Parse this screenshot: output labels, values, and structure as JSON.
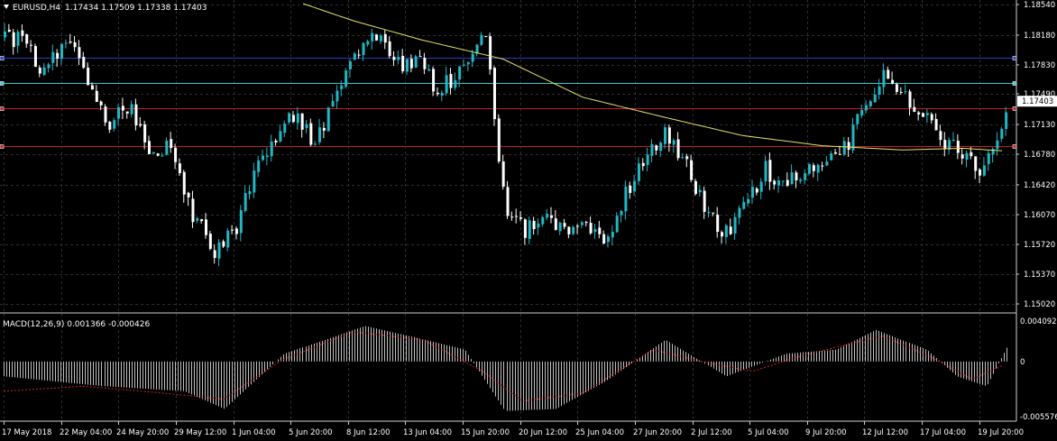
{
  "header": {
    "symbol": "EURUSD,H4",
    "ohlc": "1.17434 1.17509 1.17338 1.17403",
    "macd_label": "MACD(12,26,9) 0.001366 -0.000426"
  },
  "colors": {
    "background": "#000000",
    "grid": "#2e2e2e",
    "bull": "#21b8c4",
    "bear": "#ffffff",
    "ma": "#e6e36a",
    "hline_blue": "#2b3bbf",
    "hline_cyan": "#37c7d2",
    "hline_red": "#c02020",
    "macd_signal": "#d22020",
    "macd_hist": "#bfbfbf"
  },
  "chart_data": [
    {
      "type": "candlestick",
      "series": "EURUSD,H4",
      "y_ticks": [
        "1.18540",
        "1.18180",
        "1.17830",
        "1.17490",
        "1.17130",
        "1.16780",
        "1.16420",
        "1.16070",
        "1.15720",
        "1.15370",
        "1.15020"
      ],
      "ylim": [
        1.1502,
        1.1854
      ],
      "current_price": "1.17403",
      "x_ticks": [
        "17 May 2018",
        "22 May 04:00",
        "24 May 20:00",
        "29 May 12:00",
        "1 Jun 04:00",
        "5 Jun 20:00",
        "8 Jun 12:00",
        "13 Jun 04:00",
        "15 Jun 20:00",
        "20 Jun 12:00",
        "25 Jun 04:00",
        "27 Jun 20:00",
        "2 Jul 12:00",
        "5 Jul 04:00",
        "9 Jul 20:00",
        "12 Jul 12:00",
        "17 Jul 04:00",
        "19 Jul 20:00"
      ],
      "horizontal_lines": [
        {
          "price": 1.1791,
          "color": "#2b3bbf"
        },
        {
          "price": 1.1762,
          "color": "#37c7d2"
        },
        {
          "price": 1.1732,
          "color": "#c02020"
        },
        {
          "price": 1.1688,
          "color": "#c02020"
        }
      ],
      "close_path": [
        {
          "t": 0.0,
          "p": 1.1815
        },
        {
          "t": 0.02,
          "p": 1.1812
        },
        {
          "t": 0.035,
          "p": 1.177
        },
        {
          "t": 0.05,
          "p": 1.1795
        },
        {
          "t": 0.065,
          "p": 1.182
        },
        {
          "t": 0.085,
          "p": 1.176
        },
        {
          "t": 0.105,
          "p": 1.1715
        },
        {
          "t": 0.125,
          "p": 1.1735
        },
        {
          "t": 0.145,
          "p": 1.168
        },
        {
          "t": 0.165,
          "p": 1.169
        },
        {
          "t": 0.185,
          "p": 1.1615
        },
        {
          "t": 0.21,
          "p": 1.1562
        },
        {
          "t": 0.23,
          "p": 1.159
        },
        {
          "t": 0.25,
          "p": 1.166
        },
        {
          "t": 0.27,
          "p": 1.169
        },
        {
          "t": 0.29,
          "p": 1.173
        },
        {
          "t": 0.31,
          "p": 1.169
        },
        {
          "t": 0.33,
          "p": 1.174
        },
        {
          "t": 0.35,
          "p": 1.18
        },
        {
          "t": 0.375,
          "p": 1.182
        },
        {
          "t": 0.395,
          "p": 1.1785
        },
        {
          "t": 0.415,
          "p": 1.179
        },
        {
          "t": 0.43,
          "p": 1.1755
        },
        {
          "t": 0.45,
          "p": 1.177
        },
        {
          "t": 0.468,
          "p": 1.1805
        },
        {
          "t": 0.48,
          "p": 1.182
        },
        {
          "t": 0.5,
          "p": 1.1612
        },
        {
          "t": 0.52,
          "p": 1.159
        },
        {
          "t": 0.54,
          "p": 1.16
        },
        {
          "t": 0.56,
          "p": 1.1585
        },
        {
          "t": 0.58,
          "p": 1.16
        },
        {
          "t": 0.6,
          "p": 1.157
        },
        {
          "t": 0.62,
          "p": 1.163
        },
        {
          "t": 0.64,
          "p": 1.168
        },
        {
          "t": 0.66,
          "p": 1.1705
        },
        {
          "t": 0.68,
          "p": 1.167
        },
        {
          "t": 0.7,
          "p": 1.161
        },
        {
          "t": 0.72,
          "p": 1.1585
        },
        {
          "t": 0.74,
          "p": 1.162
        },
        {
          "t": 0.76,
          "p": 1.166
        },
        {
          "t": 0.78,
          "p": 1.164
        },
        {
          "t": 0.8,
          "p": 1.166
        },
        {
          "t": 0.82,
          "p": 1.1665
        },
        {
          "t": 0.84,
          "p": 1.1685
        },
        {
          "t": 0.86,
          "p": 1.174
        },
        {
          "t": 0.88,
          "p": 1.177
        },
        {
          "t": 0.9,
          "p": 1.1745
        },
        {
          "t": 0.92,
          "p": 1.173
        },
        {
          "t": 0.94,
          "p": 1.169
        },
        {
          "t": 0.96,
          "p": 1.168
        },
        {
          "t": 0.975,
          "p": 1.1655
        },
        {
          "t": 0.99,
          "p": 1.17
        },
        {
          "t": 1.0,
          "p": 1.172
        }
      ],
      "moving_average": [
        {
          "t": 0.3,
          "p": 1.1855
        },
        {
          "t": 0.35,
          "p": 1.1835
        },
        {
          "t": 0.42,
          "p": 1.1812
        },
        {
          "t": 0.5,
          "p": 1.179
        },
        {
          "t": 0.58,
          "p": 1.1745
        },
        {
          "t": 0.66,
          "p": 1.1722
        },
        {
          "t": 0.74,
          "p": 1.17
        },
        {
          "t": 0.82,
          "p": 1.1688
        },
        {
          "t": 0.9,
          "p": 1.1683
        },
        {
          "t": 0.96,
          "p": 1.1685
        },
        {
          "t": 1.0,
          "p": 1.1682
        }
      ]
    },
    {
      "type": "macd",
      "name": "MACD(12,26,9)",
      "y_ticks": [
        "0.004092",
        "0",
        "-0.005576"
      ],
      "ylim": [
        -0.005576,
        0.004092
      ],
      "main_path": [
        {
          "t": 0.0,
          "v": -0.0015
        },
        {
          "t": 0.1,
          "v": -0.0025
        },
        {
          "t": 0.18,
          "v": -0.003
        },
        {
          "t": 0.22,
          "v": -0.0048
        },
        {
          "t": 0.28,
          "v": 0.0008
        },
        {
          "t": 0.36,
          "v": 0.0036
        },
        {
          "t": 0.42,
          "v": 0.0022
        },
        {
          "t": 0.46,
          "v": 0.0012
        },
        {
          "t": 0.5,
          "v": -0.005
        },
        {
          "t": 0.55,
          "v": -0.0048
        },
        {
          "t": 0.6,
          "v": -0.002
        },
        {
          "t": 0.66,
          "v": 0.0022
        },
        {
          "t": 0.72,
          "v": -0.0015
        },
        {
          "t": 0.78,
          "v": 0.0008
        },
        {
          "t": 0.83,
          "v": 0.0012
        },
        {
          "t": 0.87,
          "v": 0.0032
        },
        {
          "t": 0.92,
          "v": 0.0012
        },
        {
          "t": 0.95,
          "v": -0.0015
        },
        {
          "t": 0.98,
          "v": -0.0025
        },
        {
          "t": 1.0,
          "v": 0.0014
        }
      ],
      "signal_path": [
        {
          "t": 0.0,
          "v": -0.003
        },
        {
          "t": 0.08,
          "v": -0.0025
        },
        {
          "t": 0.16,
          "v": -0.0032
        },
        {
          "t": 0.22,
          "v": -0.0038
        },
        {
          "t": 0.28,
          "v": 0.0002
        },
        {
          "t": 0.35,
          "v": 0.003
        },
        {
          "t": 0.42,
          "v": 0.0022
        },
        {
          "t": 0.48,
          "v": -0.001
        },
        {
          "t": 0.52,
          "v": -0.004
        },
        {
          "t": 0.58,
          "v": -0.0032
        },
        {
          "t": 0.65,
          "v": 0.0012
        },
        {
          "t": 0.7,
          "v": 0.0
        },
        {
          "t": 0.75,
          "v": -0.001
        },
        {
          "t": 0.8,
          "v": 0.0006
        },
        {
          "t": 0.88,
          "v": 0.0026
        },
        {
          "t": 0.93,
          "v": 0.0004
        },
        {
          "t": 0.97,
          "v": -0.0018
        },
        {
          "t": 1.0,
          "v": -0.0004
        }
      ]
    }
  ]
}
